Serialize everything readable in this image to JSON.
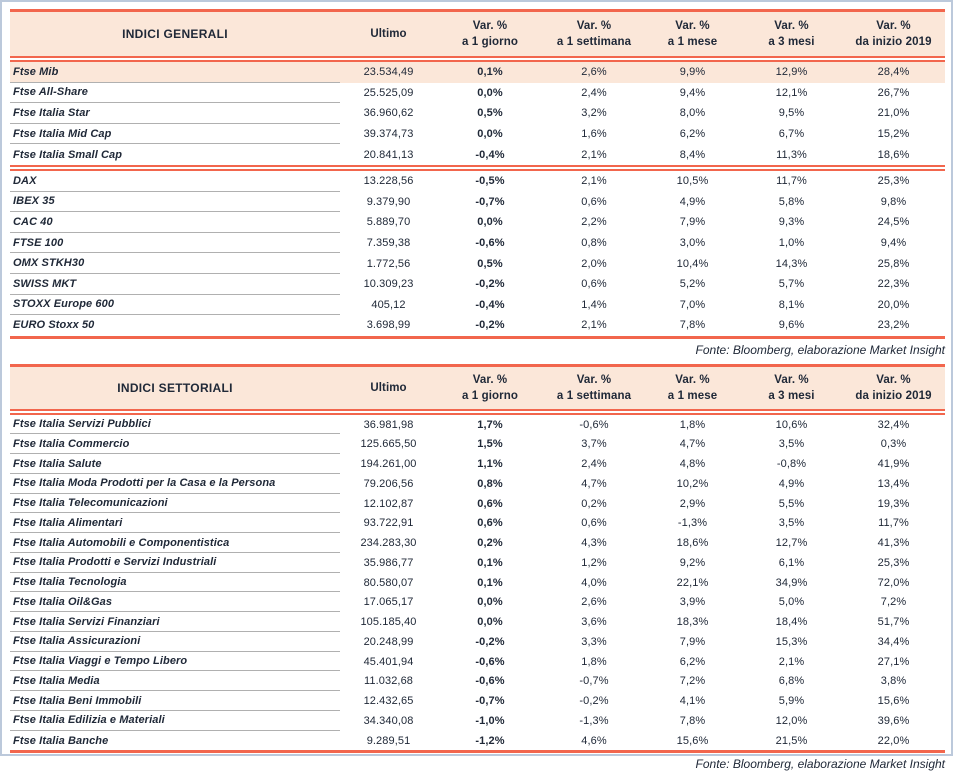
{
  "colors": {
    "accent": "#f2664d",
    "header_bg": "#fbe7d9",
    "highlight_bg": "#fbe7d9",
    "text": "#202938",
    "row_separator": "#b0b0b0",
    "frame_border": "#bcc9db"
  },
  "columns": {
    "ultimo": "Ultimo",
    "headers": [
      {
        "line1": "Var. %",
        "line2": "a 1 giorno"
      },
      {
        "line1": "Var. %",
        "line2": "a 1 settimana"
      },
      {
        "line1": "Var. %",
        "line2": "a 1 mese"
      },
      {
        "line1": "Var. %",
        "line2": "a 3 mesi"
      },
      {
        "line1": "Var. %",
        "line2": "da inizio 2019"
      }
    ]
  },
  "tables": [
    {
      "title": "INDICI GENERALI",
      "fonte": "Fonte: Bloomberg, elaborazione Market Insight",
      "groups": [
        {
          "rows": [
            {
              "name": "Ftse Mib",
              "ultimo": "23.534,49",
              "d1": "0,1%",
              "w1": "2,6%",
              "m1": "9,9%",
              "m3": "12,9%",
              "ytd": "28,4%",
              "highlight": true
            },
            {
              "name": "Ftse All-Share",
              "ultimo": "25.525,09",
              "d1": "0,0%",
              "w1": "2,4%",
              "m1": "9,4%",
              "m3": "12,1%",
              "ytd": "26,7%"
            },
            {
              "name": "Ftse Italia Star",
              "ultimo": "36.960,62",
              "d1": "0,5%",
              "w1": "3,2%",
              "m1": "8,0%",
              "m3": "9,5%",
              "ytd": "21,0%"
            },
            {
              "name": "Ftse Italia Mid Cap",
              "ultimo": "39.374,73",
              "d1": "0,0%",
              "w1": "1,6%",
              "m1": "6,2%",
              "m3": "6,7%",
              "ytd": "15,2%"
            },
            {
              "name": "Ftse Italia Small Cap",
              "ultimo": "20.841,13",
              "d1": "-0,4%",
              "w1": "2,1%",
              "m1": "8,4%",
              "m3": "11,3%",
              "ytd": "18,6%"
            }
          ]
        },
        {
          "rows": [
            {
              "name": "DAX",
              "ultimo": "13.228,56",
              "d1": "-0,5%",
              "w1": "2,1%",
              "m1": "10,5%",
              "m3": "11,7%",
              "ytd": "25,3%"
            },
            {
              "name": "IBEX 35",
              "ultimo": "9.379,90",
              "d1": "-0,7%",
              "w1": "0,6%",
              "m1": "4,9%",
              "m3": "5,8%",
              "ytd": "9,8%"
            },
            {
              "name": "CAC 40",
              "ultimo": "5.889,70",
              "d1": "0,0%",
              "w1": "2,2%",
              "m1": "7,9%",
              "m3": "9,3%",
              "ytd": "24,5%"
            },
            {
              "name": "FTSE 100",
              "ultimo": "7.359,38",
              "d1": "-0,6%",
              "w1": "0,8%",
              "m1": "3,0%",
              "m3": "1,0%",
              "ytd": "9,4%"
            },
            {
              "name": "OMX STKH30",
              "ultimo": "1.772,56",
              "d1": "0,5%",
              "w1": "2,0%",
              "m1": "10,4%",
              "m3": "14,3%",
              "ytd": "25,8%"
            },
            {
              "name": "SWISS MKT",
              "ultimo": "10.309,23",
              "d1": "-0,2%",
              "w1": "0,6%",
              "m1": "5,2%",
              "m3": "5,7%",
              "ytd": "22,3%"
            },
            {
              "name": "STOXX Europe 600",
              "ultimo": "405,12",
              "d1": "-0,4%",
              "w1": "1,4%",
              "m1": "7,0%",
              "m3": "8,1%",
              "ytd": "20,0%"
            },
            {
              "name": "EURO Stoxx 50",
              "ultimo": "3.698,99",
              "d1": "-0,2%",
              "w1": "2,1%",
              "m1": "7,8%",
              "m3": "9,6%",
              "ytd": "23,2%"
            }
          ]
        }
      ]
    },
    {
      "title": "INDICI SETTORIALI",
      "fonte": "Fonte: Bloomberg, elaborazione Market Insight",
      "groups": [
        {
          "rows": [
            {
              "name": "Ftse Italia Servizi Pubblici",
              "ultimo": "36.981,98",
              "d1": "1,7%",
              "w1": "-0,6%",
              "m1": "1,8%",
              "m3": "10,6%",
              "ytd": "32,4%"
            },
            {
              "name": "Ftse Italia Commercio",
              "ultimo": "125.665,50",
              "d1": "1,5%",
              "w1": "3,7%",
              "m1": "4,7%",
              "m3": "3,5%",
              "ytd": "0,3%"
            },
            {
              "name": "Ftse Italia Salute",
              "ultimo": "194.261,00",
              "d1": "1,1%",
              "w1": "2,4%",
              "m1": "4,8%",
              "m3": "-0,8%",
              "ytd": "41,9%"
            },
            {
              "name": "Ftse Italia Moda Prodotti per la Casa e la Persona",
              "ultimo": "79.206,56",
              "d1": "0,8%",
              "w1": "4,7%",
              "m1": "10,2%",
              "m3": "4,9%",
              "ytd": "13,4%"
            },
            {
              "name": "Ftse Italia Telecomunicazioni",
              "ultimo": "12.102,87",
              "d1": "0,6%",
              "w1": "0,2%",
              "m1": "2,9%",
              "m3": "5,5%",
              "ytd": "19,3%"
            },
            {
              "name": "Ftse Italia Alimentari",
              "ultimo": "93.722,91",
              "d1": "0,6%",
              "w1": "0,6%",
              "m1": "-1,3%",
              "m3": "3,5%",
              "ytd": "11,7%"
            },
            {
              "name": "Ftse Italia Automobili e Componentistica",
              "ultimo": "234.283,30",
              "d1": "0,2%",
              "w1": "4,3%",
              "m1": "18,6%",
              "m3": "12,7%",
              "ytd": "41,3%"
            },
            {
              "name": "Ftse Italia Prodotti e Servizi Industriali",
              "ultimo": "35.986,77",
              "d1": "0,1%",
              "w1": "1,2%",
              "m1": "9,2%",
              "m3": "6,1%",
              "ytd": "25,3%"
            },
            {
              "name": "Ftse Italia Tecnologia",
              "ultimo": "80.580,07",
              "d1": "0,1%",
              "w1": "4,0%",
              "m1": "22,1%",
              "m3": "34,9%",
              "ytd": "72,0%"
            },
            {
              "name": "Ftse Italia Oil&Gas",
              "ultimo": "17.065,17",
              "d1": "0,0%",
              "w1": "2,6%",
              "m1": "3,9%",
              "m3": "5,0%",
              "ytd": "7,2%"
            },
            {
              "name": "Ftse Italia Servizi Finanziari",
              "ultimo": "105.185,40",
              "d1": "0,0%",
              "w1": "3,6%",
              "m1": "18,3%",
              "m3": "18,4%",
              "ytd": "51,7%"
            },
            {
              "name": "Ftse Italia Assicurazioni",
              "ultimo": "20.248,99",
              "d1": "-0,2%",
              "w1": "3,3%",
              "m1": "7,9%",
              "m3": "15,3%",
              "ytd": "34,4%"
            },
            {
              "name": "Ftse Italia Viaggi e Tempo Libero",
              "ultimo": "45.401,94",
              "d1": "-0,6%",
              "w1": "1,8%",
              "m1": "6,2%",
              "m3": "2,1%",
              "ytd": "27,1%"
            },
            {
              "name": "Ftse Italia Media",
              "ultimo": "11.032,68",
              "d1": "-0,6%",
              "w1": "-0,7%",
              "m1": "7,2%",
              "m3": "6,8%",
              "ytd": "3,8%"
            },
            {
              "name": "Ftse Italia Beni Immobili",
              "ultimo": "12.432,65",
              "d1": "-0,7%",
              "w1": "-0,2%",
              "m1": "4,1%",
              "m3": "5,9%",
              "ytd": "15,6%"
            },
            {
              "name": "Ftse Italia Edilizia e Materiali",
              "ultimo": "34.340,08",
              "d1": "-1,0%",
              "w1": "-1,3%",
              "m1": "7,8%",
              "m3": "12,0%",
              "ytd": "39,6%"
            },
            {
              "name": "Ftse Italia Banche",
              "ultimo": "9.289,51",
              "d1": "-1,2%",
              "w1": "4,6%",
              "m1": "15,6%",
              "m3": "21,5%",
              "ytd": "22,0%"
            }
          ]
        }
      ]
    }
  ]
}
